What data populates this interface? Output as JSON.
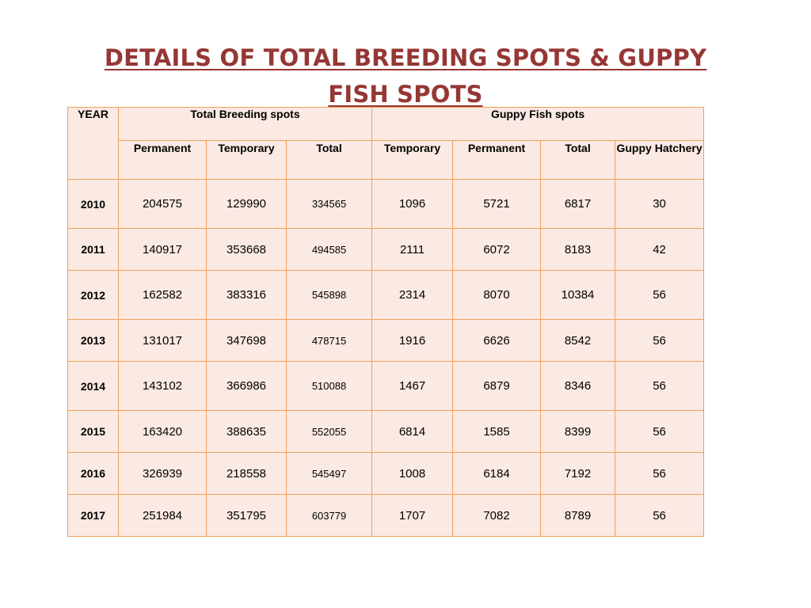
{
  "title": "DETAILS  OF  TOTAL BREEDING SPOTS & GUPPY\nFISH  SPOTS",
  "table": {
    "year_header": "YEAR",
    "group_headers": {
      "breeding": "Total Breeding spots",
      "guppy": "Guppy Fish spots"
    },
    "sub_headers": [
      "Permanent",
      "Temporary",
      "Total",
      "Temporary",
      "Permanent",
      "Total",
      "Guppy Hatchery"
    ],
    "rows": [
      [
        "2010",
        "204575",
        "129990",
        "334565",
        "1096",
        "5721",
        "6817",
        "30"
      ],
      [
        "2011",
        "140917",
        "353668",
        "494585",
        "2111",
        "6072",
        "8183",
        "42"
      ],
      [
        "2012",
        "162582",
        "383316",
        "545898",
        "2314",
        "8070",
        "10384",
        "56"
      ],
      [
        "2013",
        "131017",
        "347698",
        "478715",
        "1916",
        "6626",
        "8542",
        "56"
      ],
      [
        "2014",
        "143102",
        "366986",
        "510088",
        "1467",
        "6879",
        "8346",
        "56"
      ],
      [
        "2015",
        "163420",
        "388635",
        "552055",
        "6814",
        "1585",
        "8399",
        "56"
      ],
      [
        "2016",
        "326939",
        "218558",
        "545497",
        "1008",
        "6184",
        "7192",
        "56"
      ],
      [
        "2017",
        "251984",
        "351795",
        "603779",
        "1707",
        "7082",
        "8789",
        "56"
      ]
    ]
  },
  "colors": {
    "title": "#953735",
    "cell_background": "#fbe9e3",
    "border": "#f0a05a"
  }
}
